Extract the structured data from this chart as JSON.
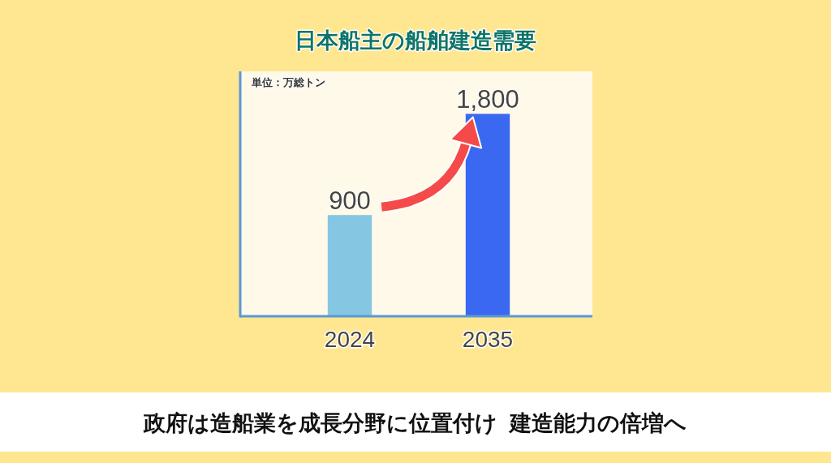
{
  "chart_data": {
    "type": "bar",
    "title": "日本船主の船舶建造需要",
    "ylabel": "単位：万総トン",
    "categories": [
      "2024",
      "2035"
    ],
    "values": [
      900,
      1800
    ],
    "colors": [
      "#85c6e3",
      "#3b68f0"
    ],
    "value_labels": [
      "900",
      "1,800"
    ],
    "annotations": [
      "政府は造船業を成長分野に位置付け  建造能力の倍増へ"
    ]
  }
}
